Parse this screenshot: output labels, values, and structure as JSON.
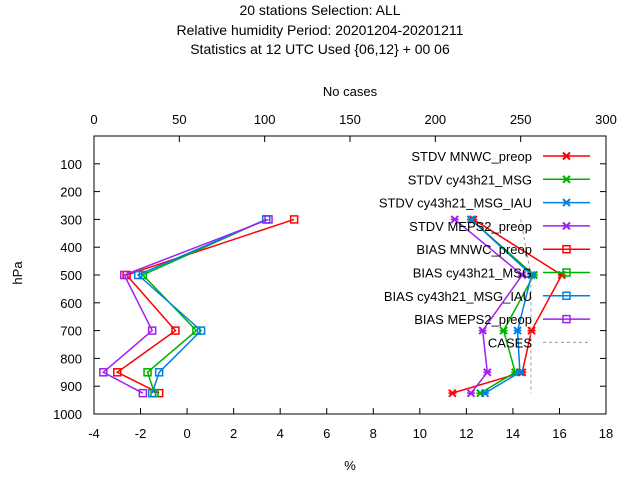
{
  "chart_data": {
    "type": "line",
    "title": [
      "20 stations Selection: ALL",
      "Relative humidity  Period: 20201204-20201211",
      "Statistics at 12 UTC  Used {06,12} + 00 06"
    ],
    "xlabel": "%",
    "x2label": "No cases",
    "ylabel": "hPa",
    "xlim": [
      -4,
      18
    ],
    "x2lim": [
      0,
      300
    ],
    "ylim": [
      1000,
      0
    ],
    "xticks": [
      "-4",
      "-2",
      "0",
      "2",
      "4",
      "6",
      "8",
      "10",
      "12",
      "14",
      "16",
      "18"
    ],
    "x2ticks": [
      "0",
      "50",
      "100",
      "150",
      "200",
      "250",
      "300"
    ],
    "yticks": [
      "100",
      "200",
      "300",
      "400",
      "500",
      "600",
      "700",
      "800",
      "900",
      "1000"
    ],
    "levels": [
      300,
      500,
      700,
      850,
      925
    ],
    "legend_position": "top-right",
    "grid": false,
    "series": [
      {
        "name": "STDV MNWC_preop",
        "stat": "stdv",
        "color": "#ff0000",
        "values": [
          12.3,
          16.1,
          14.8,
          14.4,
          11.4
        ]
      },
      {
        "name": "STDV cy43h21_MSG",
        "stat": "stdv",
        "color": "#00b000",
        "values": [
          12.2,
          14.9,
          13.6,
          14.1,
          12.6
        ]
      },
      {
        "name": "STDV cy43h21_MSG_IAU",
        "stat": "stdv",
        "color": "#0080e0",
        "values": [
          12.2,
          14.8,
          14.2,
          14.3,
          12.8
        ]
      },
      {
        "name": "STDV MEPS2_preop",
        "stat": "stdv",
        "color": "#a020f0",
        "values": [
          11.5,
          14.4,
          12.7,
          12.9,
          12.2
        ]
      },
      {
        "name": "BIAS MNWC_preop",
        "stat": "bias",
        "color": "#ff0000",
        "values": [
          4.6,
          -2.6,
          -0.5,
          -3.0,
          -1.2
        ]
      },
      {
        "name": "BIAS cy43h21_MSG",
        "stat": "bias",
        "color": "#00b000",
        "values": [
          3.4,
          -1.9,
          0.4,
          -1.7,
          -1.4
        ]
      },
      {
        "name": "BIAS cy43h21_MSG_IAU",
        "stat": "bias",
        "color": "#0080e0",
        "values": [
          3.4,
          -2.1,
          0.6,
          -1.2,
          -1.5
        ]
      },
      {
        "name": "BIAS MEPS2_preop",
        "stat": "bias",
        "color": "#a020f0",
        "values": [
          3.5,
          -2.7,
          -1.5,
          -3.6,
          -1.9
        ]
      },
      {
        "name": "CASES",
        "stat": "cases",
        "color": "#999999",
        "values": [
          250,
          256,
          256,
          256,
          256
        ]
      }
    ]
  }
}
